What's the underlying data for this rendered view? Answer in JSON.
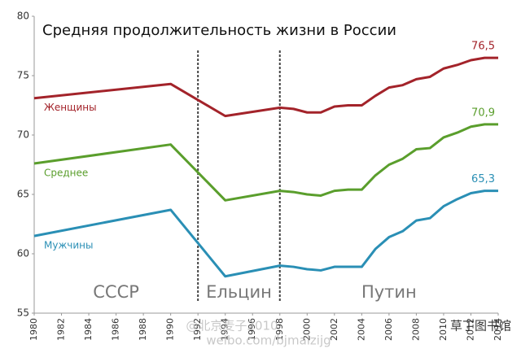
{
  "chart_data": {
    "type": "line",
    "title": "Средняя продолжительность жизни в России",
    "x": [
      1980,
      1990,
      1994,
      1998,
      1999,
      2000,
      2001,
      2002,
      2003,
      2004,
      2005,
      2006,
      2007,
      2008,
      2009,
      2010,
      2011,
      2012,
      2013,
      2014
    ],
    "series": [
      {
        "name": "Женщины",
        "color": "#a3232a",
        "values": [
          73.1,
          74.3,
          71.6,
          72.3,
          72.2,
          71.9,
          71.9,
          72.4,
          72.5,
          72.5,
          73.3,
          74.0,
          74.2,
          74.7,
          74.9,
          75.6,
          75.9,
          76.3,
          76.5,
          76.5
        ],
        "value_labels": [
          null,
          null,
          null,
          null,
          null,
          null,
          null,
          null,
          null,
          null,
          null,
          null,
          null,
          null,
          null,
          null,
          null,
          null,
          null,
          "76,5"
        ]
      },
      {
        "name": "Среднее",
        "color": "#5a9e2c",
        "values": [
          67.6,
          69.2,
          64.5,
          65.3,
          65.2,
          65.0,
          64.9,
          65.3,
          65.4,
          65.4,
          66.6,
          67.5,
          68.0,
          68.8,
          68.9,
          69.8,
          70.2,
          70.7,
          70.9,
          70.9
        ],
        "value_labels": [
          null,
          null,
          null,
          null,
          null,
          null,
          null,
          null,
          null,
          null,
          null,
          null,
          null,
          null,
          null,
          null,
          null,
          null,
          null,
          "70,9"
        ]
      },
      {
        "name": "Мужчины",
        "color": "#2a8fb5",
        "values": [
          61.5,
          63.7,
          58.1,
          59.0,
          58.9,
          58.7,
          58.6,
          58.9,
          58.9,
          58.9,
          60.4,
          61.4,
          61.9,
          62.8,
          63.0,
          64.0,
          64.6,
          65.1,
          65.3,
          65.3
        ],
        "value_labels": [
          null,
          null,
          null,
          null,
          null,
          null,
          null,
          null,
          null,
          null,
          null,
          null,
          null,
          null,
          null,
          null,
          null,
          null,
          null,
          "65,3"
        ]
      }
    ],
    "xlim": [
      1980,
      2014
    ],
    "xticks": [
      1980,
      1982,
      1984,
      1986,
      1988,
      1990,
      1992,
      1994,
      1996,
      1998,
      2000,
      2002,
      2004,
      2006,
      2008,
      2010,
      2012,
      2014
    ],
    "ylim": [
      55,
      80
    ],
    "yticks": [
      55,
      60,
      65,
      70,
      75,
      80
    ],
    "grid": false,
    "dividers": [
      1992,
      1998
    ],
    "eras": [
      "СССР",
      "Ельцин",
      "Путин"
    ],
    "watermark": [
      "@北京麦子2010",
      "weibo.com/bjmaizijg",
      "草丁图书馆"
    ]
  }
}
